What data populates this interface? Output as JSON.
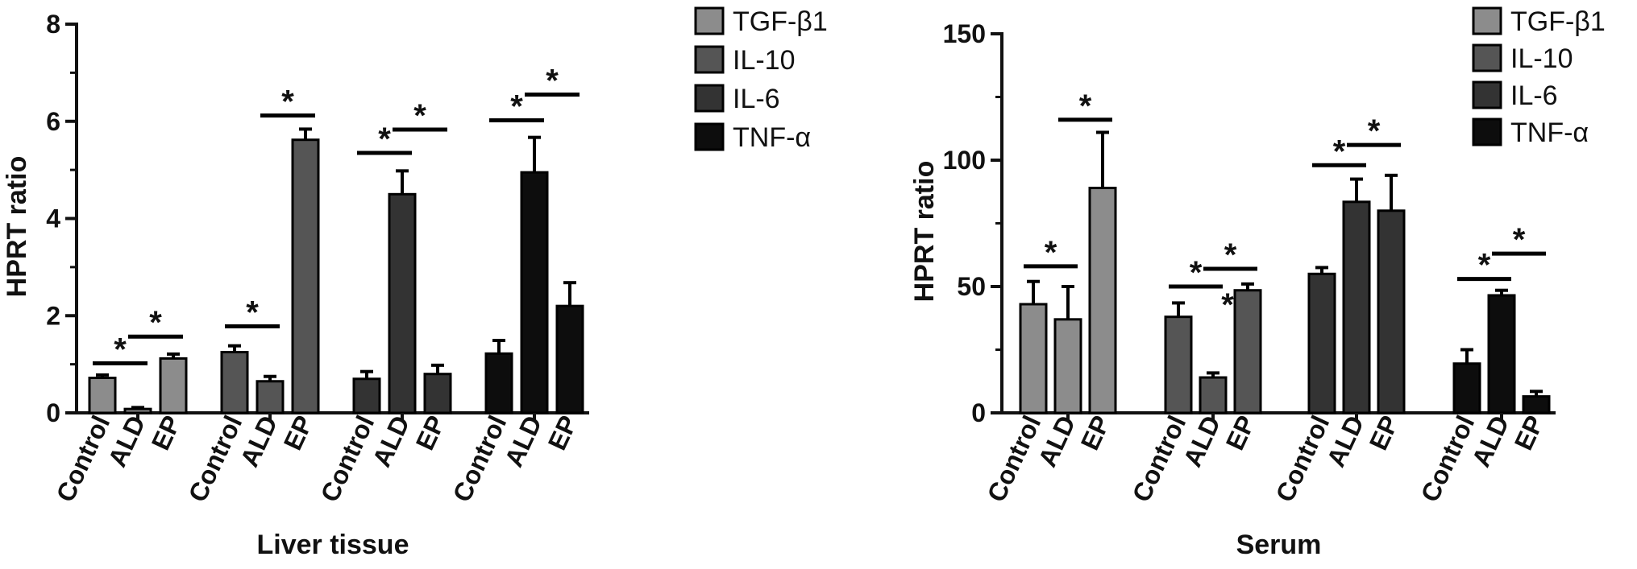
{
  "colors": {
    "TGF-β1": "#8c8c8c",
    "IL-10": "#555555",
    "IL-6": "#333333",
    "TNF-α": "#0d0d0d",
    "axis": "#111111"
  },
  "chart_data": [
    {
      "type": "bar",
      "title": "",
      "xlabel": "Liver tissue",
      "ylabel": "HPRT ratio",
      "ylim": [
        0,
        8
      ],
      "yticks": [
        "0",
        "2",
        "4",
        "6",
        "8"
      ],
      "groups": [
        "TGF-β1",
        "IL-10",
        "IL-6",
        "TNF-α"
      ],
      "categories": [
        "Control",
        "ALD",
        "EP"
      ],
      "legend": {
        "position": "top-right",
        "entries": [
          "TGF-β1",
          "IL-10",
          "IL-6",
          "TNF-α"
        ]
      },
      "series": [
        {
          "name": "TGF-β1",
          "values": [
            0.72,
            0.08,
            1.12
          ],
          "errors": [
            0.06,
            0.03,
            0.09
          ]
        },
        {
          "name": "IL-10",
          "values": [
            1.25,
            0.65,
            5.62
          ],
          "errors": [
            0.13,
            0.1,
            0.22
          ]
        },
        {
          "name": "IL-6",
          "values": [
            0.7,
            4.5,
            0.8
          ],
          "errors": [
            0.15,
            0.48,
            0.18
          ]
        },
        {
          "name": "TNF-α",
          "values": [
            1.22,
            4.95,
            2.2
          ],
          "errors": [
            0.27,
            0.72,
            0.48
          ]
        }
      ],
      "significance": [
        {
          "series": "TGF-β1",
          "from": "Control",
          "to": "ALD",
          "y": 1.02,
          "label": "*"
        },
        {
          "series": "TGF-β1",
          "from": "ALD",
          "to": "EP",
          "y": 1.57,
          "label": "*"
        },
        {
          "series": "IL-10",
          "from": "Control",
          "to": "ALD",
          "y": 1.78,
          "label": "*"
        },
        {
          "series": "IL-10",
          "from": "ALD",
          "to": "EP",
          "y": 6.12,
          "label": "*"
        },
        {
          "series": "IL-6",
          "from": "Control",
          "to": "ALD",
          "y": 5.35,
          "label": "*"
        },
        {
          "series": "IL-6",
          "from": "ALD",
          "to": "EP",
          "y": 5.83,
          "label": "*"
        },
        {
          "series": "TNF-α",
          "from": "Control",
          "to": "ALD",
          "y": 6.02,
          "label": "*"
        },
        {
          "series": "TNF-α",
          "from": "ALD",
          "to": "EP",
          "y": 6.55,
          "label": "*"
        }
      ]
    },
    {
      "type": "bar",
      "title": "",
      "xlabel": "Serum",
      "ylabel": "HPRT ratio",
      "ylim": [
        0,
        150
      ],
      "yticks": [
        "0",
        "50",
        "100",
        "150"
      ],
      "groups": [
        "TGF-β1",
        "IL-10",
        "IL-6",
        "TNF-α"
      ],
      "categories": [
        "Control",
        "ALD",
        "EP"
      ],
      "legend": {
        "position": "top-right",
        "entries": [
          "TGF-β1",
          "IL-10",
          "IL-6",
          "TNF-α"
        ]
      },
      "series": [
        {
          "name": "TGF-β1",
          "values": [
            43,
            37,
            89
          ],
          "errors": [
            9,
            13,
            22
          ]
        },
        {
          "name": "IL-10",
          "values": [
            38,
            14,
            48.5
          ],
          "errors": [
            5.5,
            1.8,
            2.5
          ]
        },
        {
          "name": "IL-6",
          "values": [
            55,
            83.5,
            80
          ],
          "errors": [
            2.5,
            9,
            14
          ]
        },
        {
          "name": "TNF-α",
          "values": [
            19.5,
            46.5,
            6.5
          ],
          "errors": [
            5.5,
            2,
            2
          ]
        }
      ],
      "significance": [
        {
          "series": "TGF-β1",
          "from": "Control",
          "to": "ALD",
          "y": 58,
          "label": "*"
        },
        {
          "series": "TGF-β1",
          "from": "ALD",
          "to": "EP",
          "y": 116,
          "label": "*"
        },
        {
          "series": "IL-10",
          "from": "Control",
          "to": "ALD",
          "y": 50,
          "label": "*"
        },
        {
          "series": "IL-10",
          "from": "ALD",
          "to": "EP",
          "y": 57,
          "label": "*"
        },
        {
          "series": "IL-6",
          "from": "Control",
          "to": "ALD",
          "y": 98,
          "label": "*"
        },
        {
          "series": "IL-6",
          "from": "ALD",
          "to": "EP",
          "y": 106,
          "label": "*"
        },
        {
          "series": "TNF-α",
          "from": "Control",
          "to": "ALD",
          "y": 53,
          "label": "*"
        },
        {
          "series": "TNF-α",
          "from": "ALD",
          "to": "EP",
          "y": 63,
          "label": "*"
        }
      ],
      "extra_marks": [
        {
          "series": "IL-10",
          "category": "ALD",
          "y": 43,
          "label": "*"
        }
      ]
    }
  ]
}
